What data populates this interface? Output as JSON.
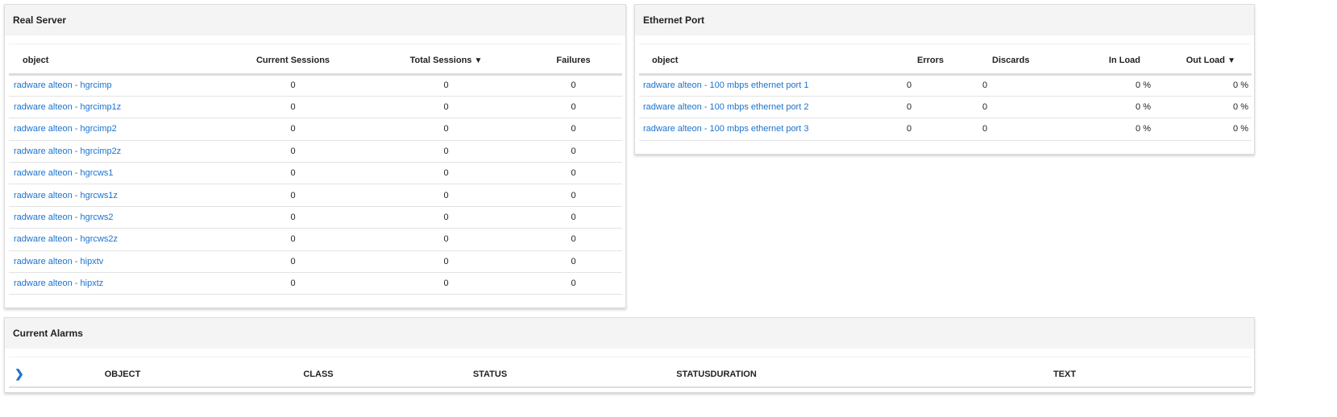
{
  "real_server": {
    "title": "Real Server",
    "columns": {
      "object": "object",
      "current": "Current Sessions",
      "total": "Total Sessions",
      "failures": "Failures"
    },
    "rows": [
      {
        "object": "radware alteon - hgrcimp",
        "current": "0",
        "total": "0",
        "failures": "0"
      },
      {
        "object": "radware alteon - hgrcimp1z",
        "current": "0",
        "total": "0",
        "failures": "0"
      },
      {
        "object": "radware alteon - hgrcimp2",
        "current": "0",
        "total": "0",
        "failures": "0"
      },
      {
        "object": "radware alteon - hgrcimp2z",
        "current": "0",
        "total": "0",
        "failures": "0"
      },
      {
        "object": "radware alteon - hgrcws1",
        "current": "0",
        "total": "0",
        "failures": "0"
      },
      {
        "object": "radware alteon - hgrcws1z",
        "current": "0",
        "total": "0",
        "failures": "0"
      },
      {
        "object": "radware alteon - hgrcws2",
        "current": "0",
        "total": "0",
        "failures": "0"
      },
      {
        "object": "radware alteon - hgrcws2z",
        "current": "0",
        "total": "0",
        "failures": "0"
      },
      {
        "object": "radware alteon - hipxtv",
        "current": "0",
        "total": "0",
        "failures": "0"
      },
      {
        "object": "radware alteon - hipxtz",
        "current": "0",
        "total": "0",
        "failures": "0"
      }
    ]
  },
  "ethernet_port": {
    "title": "Ethernet Port",
    "columns": {
      "object": "object",
      "errors": "Errors",
      "discards": "Discards",
      "in_load": "In Load",
      "out_load": "Out Load"
    },
    "rows": [
      {
        "object": "radware alteon - 100 mbps ethernet port 1",
        "errors": "0",
        "discards": "0",
        "in_load": "0 %",
        "out_load": "0 %"
      },
      {
        "object": "radware alteon - 100 mbps ethernet port 2",
        "errors": "0",
        "discards": "0",
        "in_load": "0 %",
        "out_load": "0 %"
      },
      {
        "object": "radware alteon - 100 mbps ethernet port 3",
        "errors": "0",
        "discards": "0",
        "in_load": "0 %",
        "out_load": "0 %"
      }
    ]
  },
  "current_alarms": {
    "title": "Current Alarms",
    "columns": {
      "object": "OBJECT",
      "class": "CLASS",
      "status": "STATUS",
      "statusduration": "STATUSDURATION",
      "text": "TEXT"
    }
  },
  "sort_indicator": "▼",
  "colors": {
    "link": "#1a73d0",
    "header_bg": "#f4f4f4"
  }
}
